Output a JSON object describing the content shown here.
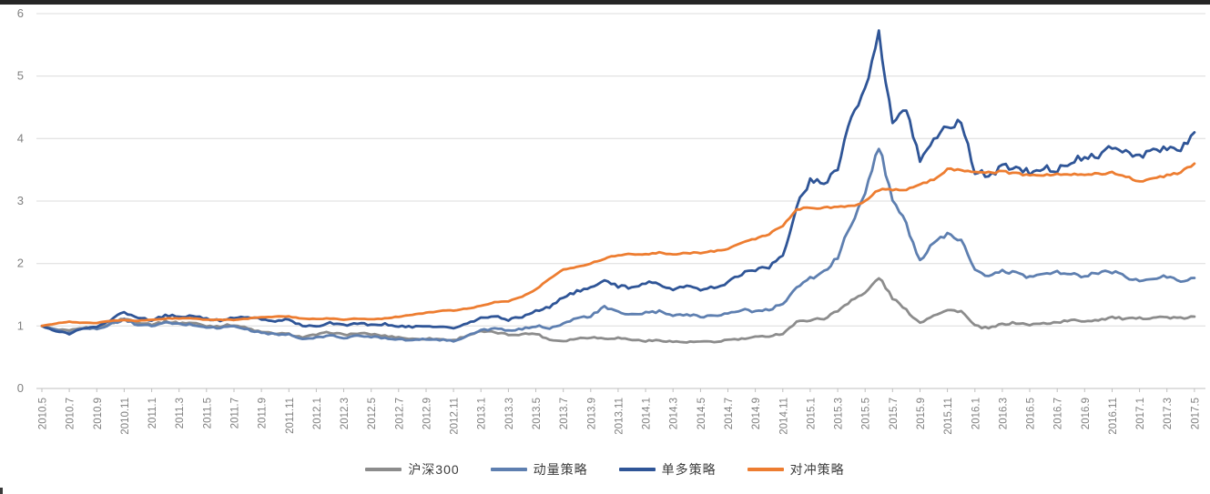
{
  "page": {
    "background": "#ffffff",
    "top_bar_color": "#262626"
  },
  "chart_data": {
    "type": "line",
    "title": "",
    "xlabel": "",
    "ylabel": "",
    "ylim": [
      0,
      6
    ],
    "y_ticks": [
      0,
      1,
      2,
      3,
      4,
      5,
      6
    ],
    "grid": "horizontal",
    "legend_position": "bottom",
    "x_start": "2010.5",
    "x_interval_months": 1,
    "x_tick_labels": [
      "2010.5",
      "2010.7",
      "2010.9",
      "2010.11",
      "2011.1",
      "2011.3",
      "2011.5",
      "2011.7",
      "2011.9",
      "2011.11",
      "2012.1",
      "2012.3",
      "2012.5",
      "2012.7",
      "2012.9",
      "2012.11",
      "2013.1",
      "2013.3",
      "2013.5",
      "2013.7",
      "2013.9",
      "2013.11",
      "2014.1",
      "2014.3",
      "2014.5",
      "2014.7",
      "2014.9",
      "2014.11",
      "2015.1",
      "2015.3",
      "2015.5",
      "2015.7",
      "2015.9",
      "2015.11",
      "2016.1",
      "2016.3",
      "2016.5",
      "2016.7",
      "2016.9",
      "2016.11",
      "2017.1",
      "2017.3",
      "2017.5"
    ],
    "colors": {
      "grid": "#dcdcdc",
      "axis_line": "#bfbfbf",
      "axis_text": "#808080"
    },
    "series": [
      {
        "name": "沪深300",
        "color": "#8c8c8c",
        "values": [
          1.0,
          0.94,
          0.92,
          0.97,
          0.96,
          1.04,
          1.12,
          1.06,
          1.03,
          1.07,
          1.05,
          1.05,
          1.0,
          1.0,
          1.02,
          0.96,
          0.9,
          0.88,
          0.87,
          0.82,
          0.86,
          0.9,
          0.86,
          0.88,
          0.87,
          0.84,
          0.82,
          0.79,
          0.8,
          0.79,
          0.77,
          0.85,
          0.91,
          0.9,
          0.86,
          0.87,
          0.88,
          0.78,
          0.76,
          0.8,
          0.82,
          0.8,
          0.81,
          0.78,
          0.76,
          0.77,
          0.75,
          0.74,
          0.75,
          0.74,
          0.78,
          0.79,
          0.82,
          0.84,
          0.88,
          1.06,
          1.1,
          1.12,
          1.24,
          1.42,
          1.52,
          1.78,
          1.45,
          1.25,
          1.05,
          1.18,
          1.25,
          1.24,
          1.0,
          0.96,
          1.03,
          1.05,
          1.02,
          1.04,
          1.06,
          1.09,
          1.08,
          1.1,
          1.14,
          1.11,
          1.12,
          1.14,
          1.14,
          1.12,
          1.15
        ]
      },
      {
        "name": "动量策略",
        "color": "#5e7fb0",
        "values": [
          1.0,
          0.93,
          0.9,
          0.96,
          0.95,
          1.03,
          1.1,
          1.02,
          1.0,
          1.05,
          1.03,
          1.02,
          0.98,
          0.97,
          1.0,
          0.94,
          0.89,
          0.87,
          0.86,
          0.79,
          0.81,
          0.85,
          0.81,
          0.84,
          0.83,
          0.81,
          0.79,
          0.77,
          0.79,
          0.78,
          0.76,
          0.84,
          0.93,
          0.96,
          0.92,
          0.95,
          1.0,
          0.97,
          1.04,
          1.12,
          1.16,
          1.3,
          1.22,
          1.18,
          1.21,
          1.23,
          1.16,
          1.19,
          1.15,
          1.17,
          1.2,
          1.26,
          1.23,
          1.26,
          1.36,
          1.62,
          1.76,
          1.86,
          2.1,
          2.65,
          3.1,
          3.88,
          3.05,
          2.62,
          2.05,
          2.32,
          2.46,
          2.36,
          1.92,
          1.78,
          1.88,
          1.85,
          1.78,
          1.83,
          1.87,
          1.82,
          1.8,
          1.85,
          1.87,
          1.78,
          1.72,
          1.76,
          1.79,
          1.73,
          1.77
        ]
      },
      {
        "name": "单多策略",
        "color": "#2f5597",
        "values": [
          1.0,
          0.91,
          0.88,
          0.96,
          0.98,
          1.1,
          1.22,
          1.13,
          1.1,
          1.17,
          1.15,
          1.16,
          1.11,
          1.09,
          1.13,
          1.15,
          1.1,
          1.08,
          1.1,
          1.0,
          0.99,
          1.06,
          1.01,
          1.05,
          1.01,
          1.03,
          1.0,
          0.98,
          1.0,
          0.99,
          0.96,
          1.04,
          1.12,
          1.16,
          1.1,
          1.15,
          1.24,
          1.3,
          1.47,
          1.55,
          1.6,
          1.74,
          1.64,
          1.6,
          1.7,
          1.68,
          1.58,
          1.64,
          1.58,
          1.62,
          1.7,
          1.84,
          1.9,
          1.94,
          2.12,
          2.9,
          3.35,
          3.28,
          3.55,
          4.35,
          4.75,
          5.65,
          4.25,
          4.42,
          3.68,
          3.98,
          4.2,
          4.25,
          3.48,
          3.4,
          3.56,
          3.54,
          3.45,
          3.55,
          3.5,
          3.6,
          3.74,
          3.7,
          3.9,
          3.8,
          3.7,
          3.8,
          3.86,
          3.82,
          4.1
        ]
      },
      {
        "name": "对冲策略",
        "color": "#ed7d31",
        "values": [
          1.0,
          1.04,
          1.07,
          1.05,
          1.05,
          1.08,
          1.1,
          1.08,
          1.1,
          1.12,
          1.12,
          1.12,
          1.1,
          1.1,
          1.1,
          1.12,
          1.14,
          1.15,
          1.15,
          1.12,
          1.11,
          1.12,
          1.1,
          1.12,
          1.11,
          1.12,
          1.15,
          1.18,
          1.21,
          1.24,
          1.25,
          1.28,
          1.32,
          1.38,
          1.4,
          1.47,
          1.58,
          1.76,
          1.9,
          1.95,
          2.0,
          2.08,
          2.14,
          2.15,
          2.15,
          2.17,
          2.15,
          2.17,
          2.17,
          2.2,
          2.24,
          2.33,
          2.4,
          2.47,
          2.6,
          2.87,
          2.89,
          2.89,
          2.9,
          2.92,
          3.0,
          3.18,
          3.18,
          3.18,
          3.28,
          3.34,
          3.51,
          3.5,
          3.47,
          3.45,
          3.47,
          3.44,
          3.4,
          3.42,
          3.43,
          3.42,
          3.43,
          3.44,
          3.45,
          3.4,
          3.31,
          3.36,
          3.41,
          3.46,
          3.6
        ]
      }
    ]
  }
}
